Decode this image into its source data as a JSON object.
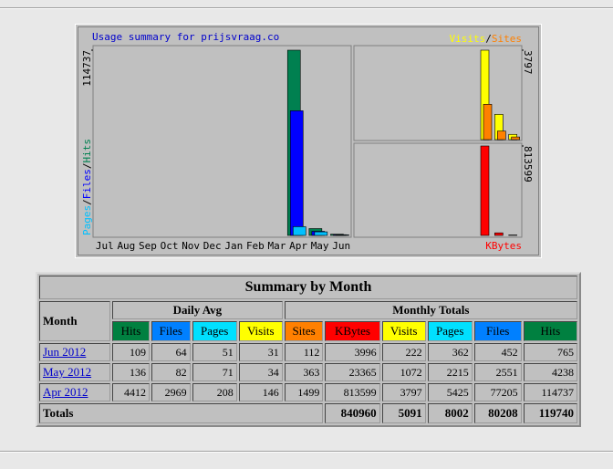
{
  "chart_data": [
    {
      "type": "bar",
      "title": "Usage summary for prijsvraag.co",
      "categories": [
        "Jul",
        "Aug",
        "Sep",
        "Oct",
        "Nov",
        "Dec",
        "Jan",
        "Feb",
        "Mar",
        "Apr",
        "May",
        "Jun"
      ],
      "legend_separator": "/",
      "series": [
        {
          "name": "Hits",
          "color": "#008050",
          "values": [
            0,
            0,
            0,
            0,
            0,
            0,
            0,
            0,
            0,
            114737,
            4238,
            765
          ]
        },
        {
          "name": "Files",
          "color": "#0000ff",
          "values": [
            0,
            0,
            0,
            0,
            0,
            0,
            0,
            0,
            0,
            77205,
            2551,
            452
          ]
        },
        {
          "name": "Pages",
          "color": "#00c0ff",
          "values": [
            0,
            0,
            0,
            0,
            0,
            0,
            0,
            0,
            0,
            5425,
            2215,
            362
          ]
        }
      ],
      "ylim": [
        0,
        114737
      ],
      "yticks": [
        114737
      ]
    },
    {
      "type": "bar",
      "legend_separator": "/",
      "series": [
        {
          "name": "Visits",
          "color": "#ffff00",
          "values": [
            0,
            0,
            0,
            0,
            0,
            0,
            0,
            0,
            0,
            3797,
            1072,
            222
          ]
        },
        {
          "name": "Sites",
          "color": "#ff8000",
          "values": [
            0,
            0,
            0,
            0,
            0,
            0,
            0,
            0,
            0,
            1499,
            363,
            112
          ]
        }
      ],
      "ylim": [
        0,
        3797
      ],
      "yticks": [
        3797
      ]
    },
    {
      "type": "bar",
      "series": [
        {
          "name": "KBytes",
          "color": "#ff0000",
          "values": [
            0,
            0,
            0,
            0,
            0,
            0,
            0,
            0,
            0,
            813599,
            23365,
            3996
          ]
        }
      ],
      "ylim": [
        0,
        813599
      ],
      "yticks": [
        813599
      ]
    }
  ],
  "table": {
    "title": "Summary by Month",
    "month_header": "Month",
    "group_headers": [
      "Daily Avg",
      "Monthly Totals"
    ],
    "columns": [
      {
        "name": "Hits",
        "color": "#008040"
      },
      {
        "name": "Files",
        "color": "#0080ff"
      },
      {
        "name": "Pages",
        "color": "#00e0ff"
      },
      {
        "name": "Visits",
        "color": "#ffff00"
      },
      {
        "name": "Sites",
        "color": "#ff8000"
      },
      {
        "name": "KBytes",
        "color": "#ff0000"
      },
      {
        "name": "Visits",
        "color": "#ffff00"
      },
      {
        "name": "Pages",
        "color": "#00e0ff"
      },
      {
        "name": "Files",
        "color": "#0080ff"
      },
      {
        "name": "Hits",
        "color": "#008040"
      }
    ],
    "rows": [
      [
        "Jun 2012",
        109,
        64,
        51,
        31,
        112,
        3996,
        222,
        362,
        452,
        765
      ],
      [
        "May 2012",
        136,
        82,
        71,
        34,
        363,
        23365,
        1072,
        2215,
        2551,
        4238
      ],
      [
        "Apr 2012",
        4412,
        2969,
        208,
        146,
        1499,
        813599,
        3797,
        5425,
        77205,
        114737
      ]
    ],
    "totals": {
      "label": "Totals",
      "values": [
        840960,
        5091,
        8002,
        80208,
        119740
      ]
    }
  }
}
